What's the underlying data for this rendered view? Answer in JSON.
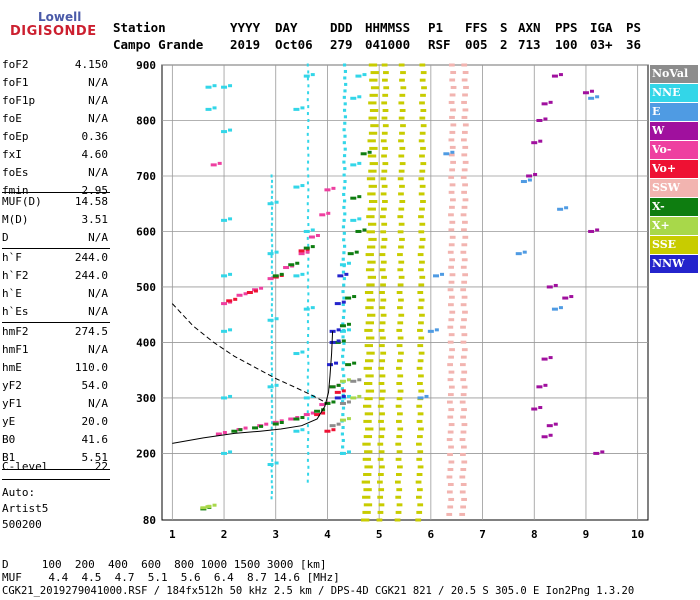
{
  "logo": {
    "line1": "Lowell",
    "line2": "DIGISONDE"
  },
  "header": {
    "row1": [
      {
        "key": "station",
        "text": "Station"
      },
      {
        "key": "yyyy",
        "text": "YYYY"
      },
      {
        "key": "day",
        "text": "DAY"
      },
      {
        "key": "ddd",
        "text": "DDD"
      },
      {
        "key": "hhmmss",
        "text": "HHMMSS"
      },
      {
        "key": "p1",
        "text": "P1"
      },
      {
        "key": "ffs",
        "text": "FFS"
      },
      {
        "key": "s",
        "text": "S"
      },
      {
        "key": "axn",
        "text": "AXN"
      },
      {
        "key": "pps",
        "text": "PPS"
      },
      {
        "key": "iga",
        "text": "IGA"
      },
      {
        "key": "ps",
        "text": "PS"
      }
    ],
    "row2": [
      {
        "key": "station",
        "text": "Campo Grande"
      },
      {
        "key": "yyyy",
        "text": "2019"
      },
      {
        "key": "day",
        "text": "Oct06"
      },
      {
        "key": "ddd",
        "text": "279"
      },
      {
        "key": "hhmmss",
        "text": "041000"
      },
      {
        "key": "p1",
        "text": "RSF"
      },
      {
        "key": "ffs",
        "text": "005"
      },
      {
        "key": "s",
        "text": "2"
      },
      {
        "key": "axn",
        "text": "713"
      },
      {
        "key": "pps",
        "text": "100"
      },
      {
        "key": "iga",
        "text": "03+"
      },
      {
        "key": "ps",
        "text": "36"
      }
    ]
  },
  "params": {
    "group1": [
      {
        "name": "foF2",
        "value": "4.150"
      },
      {
        "name": "foF1",
        "value": "N/A"
      },
      {
        "name": "foF1p",
        "value": "N/A"
      },
      {
        "name": "foE",
        "value": "N/A"
      },
      {
        "name": "foEp",
        "value": "0.36"
      },
      {
        "name": "fxI",
        "value": "4.60"
      },
      {
        "name": "foEs",
        "value": "N/A"
      },
      {
        "name": "fmin",
        "value": "2.95"
      }
    ],
    "group2": [
      {
        "name": "MUF(D)",
        "value": "14.58"
      },
      {
        "name": "M(D)",
        "value": "3.51"
      },
      {
        "name": "D",
        "value": "N/A"
      }
    ],
    "group3": [
      {
        "name": "h`F",
        "value": "244.0"
      },
      {
        "name": "h`F2",
        "value": "244.0"
      },
      {
        "name": "h`E",
        "value": "N/A"
      },
      {
        "name": "h`Es",
        "value": "N/A"
      }
    ],
    "group4": [
      {
        "name": "hmF2",
        "value": "274.5"
      },
      {
        "name": "hmF1",
        "value": "N/A"
      },
      {
        "name": "hmE",
        "value": "110.0"
      },
      {
        "name": "yF2",
        "value": "54.0"
      },
      {
        "name": "yF1",
        "value": "N/A"
      },
      {
        "name": "yE",
        "value": "20.0"
      },
      {
        "name": "B0",
        "value": "41.6"
      },
      {
        "name": "B1",
        "value": "5.51"
      }
    ],
    "clevel": {
      "name": "C-level",
      "value": "22"
    },
    "auto": [
      "Auto:",
      "Artist5",
      "500200"
    ]
  },
  "legend": [
    {
      "label": "NoVal",
      "color": "#8c8c8c"
    },
    {
      "label": "NNE",
      "color": "#33d6e8"
    },
    {
      "label": "E",
      "color": "#4f9be3"
    },
    {
      "label": "W",
      "color": "#a0109e"
    },
    {
      "label": "Vo-",
      "color": "#ee3fa0"
    },
    {
      "label": "Vo+",
      "color": "#ee1133"
    },
    {
      "label": "SSW",
      "color": "#f2b4b0"
    },
    {
      "label": "X-",
      "color": "#0e7d10"
    },
    {
      "label": "X+",
      "color": "#a8d84a"
    },
    {
      "label": "SSE",
      "color": "#c8cc00"
    },
    {
      "label": "NNW",
      "color": "#2424cc"
    }
  ],
  "bottom": {
    "d_row": "D     100  200  400  600  800 1000 1500 3000 [km]",
    "muf_row": "MUF    4.4  4.5  4.7  5.1  5.6  6.4  8.7 14.6 [MHz]",
    "footer": "CGK21_2019279041000.RSF / 184fx512h 50 kHz 2.5 km / DPS-4D CGK21 821 / 20.5 S 305.0 E Ion2Png 1.3.20"
  },
  "chart_data": {
    "type": "scatter",
    "x_ticks": [
      1,
      2,
      3,
      4,
      5,
      6,
      7,
      8,
      9,
      10
    ],
    "y_ticks": [
      200,
      300,
      400,
      500,
      600,
      700,
      800,
      900
    ],
    "y_bottom_label": "80",
    "xlim": [
      0.8,
      10.2
    ],
    "ylim": [
      80,
      900
    ],
    "grid": true,
    "series": [
      {
        "color": "#33d6e8",
        "points": [
          [
            2.0,
            200
          ],
          [
            2.0,
            300
          ],
          [
            2.0,
            420
          ],
          [
            2.0,
            520
          ],
          [
            2.0,
            620
          ],
          [
            2.0,
            780
          ],
          [
            2.0,
            860
          ],
          [
            2.9,
            180
          ],
          [
            2.9,
            320
          ],
          [
            2.9,
            440
          ],
          [
            2.9,
            560
          ],
          [
            2.9,
            650
          ],
          [
            3.4,
            240
          ],
          [
            3.4,
            380
          ],
          [
            3.4,
            520
          ],
          [
            3.4,
            680
          ],
          [
            3.4,
            820
          ],
          [
            3.6,
            300
          ],
          [
            3.6,
            460
          ],
          [
            3.6,
            600
          ],
          [
            3.6,
            880
          ],
          [
            4.3,
            200
          ],
          [
            4.3,
            300
          ],
          [
            4.3,
            420
          ],
          [
            4.3,
            540
          ],
          [
            4.5,
            620
          ],
          [
            4.5,
            720
          ],
          [
            4.5,
            840
          ],
          [
            4.6,
            880
          ],
          [
            1.7,
            820
          ],
          [
            1.7,
            860
          ]
        ]
      },
      {
        "color": "#4f9be3",
        "points": [
          [
            5.8,
            300
          ],
          [
            6.0,
            420
          ],
          [
            6.1,
            520
          ],
          [
            6.3,
            740
          ],
          [
            7.7,
            560
          ],
          [
            7.8,
            690
          ],
          [
            8.4,
            460
          ],
          [
            8.5,
            640
          ],
          [
            9.1,
            840
          ]
        ]
      },
      {
        "color": "#a0109e",
        "points": [
          [
            8.0,
            280
          ],
          [
            8.1,
            320
          ],
          [
            8.2,
            370
          ],
          [
            7.9,
            700
          ],
          [
            8.0,
            760
          ],
          [
            8.1,
            800
          ],
          [
            8.2,
            830
          ],
          [
            8.3,
            500
          ],
          [
            8.3,
            250
          ],
          [
            8.2,
            230
          ],
          [
            9.1,
            600
          ],
          [
            9.0,
            850
          ],
          [
            9.2,
            200
          ],
          [
            8.4,
            880
          ],
          [
            8.6,
            480
          ]
        ]
      },
      {
        "color": "#ee3fa0",
        "points": [
          [
            2.0,
            470
          ],
          [
            2.3,
            485
          ],
          [
            2.6,
            495
          ],
          [
            2.9,
            515
          ],
          [
            3.2,
            535
          ],
          [
            3.5,
            560
          ],
          [
            3.7,
            590
          ],
          [
            3.9,
            630
          ],
          [
            4.0,
            675
          ],
          [
            1.9,
            235
          ],
          [
            2.3,
            243
          ],
          [
            2.7,
            250
          ],
          [
            3.0,
            256
          ],
          [
            3.3,
            262
          ],
          [
            3.6,
            270
          ],
          [
            3.9,
            288
          ],
          [
            4.1,
            320
          ],
          [
            1.8,
            720
          ]
        ]
      },
      {
        "color": "#ee1133",
        "points": [
          [
            2.1,
            475
          ],
          [
            2.5,
            490
          ],
          [
            3.0,
            518
          ],
          [
            3.5,
            565
          ],
          [
            4.2,
            310
          ],
          [
            4.0,
            240
          ],
          [
            3.8,
            270
          ]
        ]
      },
      {
        "color": "#0e7d10",
        "points": [
          [
            2.2,
            240
          ],
          [
            2.6,
            246
          ],
          [
            3.0,
            253
          ],
          [
            3.4,
            262
          ],
          [
            3.8,
            276
          ],
          [
            4.0,
            290
          ],
          [
            4.1,
            320
          ],
          [
            3.0,
            520
          ],
          [
            3.3,
            540
          ],
          [
            3.6,
            570
          ],
          [
            4.2,
            400
          ],
          [
            4.3,
            430
          ],
          [
            4.4,
            480
          ],
          [
            4.45,
            560
          ],
          [
            4.5,
            660
          ],
          [
            4.4,
            360
          ],
          [
            4.7,
            740
          ],
          [
            4.6,
            600
          ],
          [
            1.6,
            100
          ]
        ]
      },
      {
        "color": "#a8d84a",
        "points": [
          [
            1.6,
            102
          ],
          [
            1.7,
            104
          ],
          [
            4.3,
            260
          ],
          [
            4.5,
            300
          ],
          [
            4.3,
            330
          ]
        ]
      },
      {
        "color": "#2424cc",
        "points": [
          [
            4.05,
            360
          ],
          [
            4.1,
            420
          ],
          [
            4.2,
            470
          ],
          [
            4.25,
            520
          ],
          [
            4.1,
            400
          ],
          [
            4.2,
            300
          ]
        ]
      },
      {
        "color": "#8c8c8c",
        "points": [
          [
            4.1,
            250
          ],
          [
            4.3,
            290
          ],
          [
            4.5,
            330
          ]
        ]
      }
    ],
    "bands": [
      {
        "color": "#c8cc00",
        "x_start": 4.65,
        "x_end": 4.85,
        "y_start": 80,
        "y_end": 900,
        "drift": 0.15
      },
      {
        "color": "#c8cc00",
        "x_start": 4.95,
        "x_end": 5.1,
        "y_start": 80,
        "y_end": 900,
        "drift": 0.1
      },
      {
        "color": "#c8cc00",
        "x_start": 5.3,
        "x_end": 5.45,
        "y_start": 80,
        "y_end": 900,
        "drift": 0.08
      },
      {
        "color": "#c8cc00",
        "x_start": 5.7,
        "x_end": 5.85,
        "y_start": 80,
        "y_end": 900,
        "drift": 0.08
      },
      {
        "color": "#f2b4b0",
        "x_start": 6.3,
        "x_end": 6.45,
        "y_start": 90,
        "y_end": 900,
        "drift": 0.05
      },
      {
        "color": "#f2b4b0",
        "x_start": 6.55,
        "x_end": 6.7,
        "y_start": 90,
        "y_end": 900,
        "drift": 0.04
      },
      {
        "color": "#33d6e8",
        "x_start": 4.25,
        "x_end": 4.35,
        "y_start": 200,
        "y_end": 900,
        "drift": 0.05
      },
      {
        "color": "#33d6e8",
        "x_start": 3.6,
        "x_end": 3.65,
        "y_start": 150,
        "y_end": 900,
        "drift": 0
      },
      {
        "color": "#33d6e8",
        "x_start": 2.9,
        "x_end": 2.95,
        "y_start": 120,
        "y_end": 700,
        "drift": 0
      }
    ],
    "profile_curve": [
      [
        4.1,
        420
      ],
      [
        4.08,
        380
      ],
      [
        4.05,
        340
      ],
      [
        4.02,
        310
      ],
      [
        3.95,
        285
      ],
      [
        3.8,
        262
      ],
      [
        3.5,
        250
      ],
      [
        3.1,
        244
      ],
      [
        2.7,
        240
      ],
      [
        2.2,
        236
      ],
      [
        1.6,
        228
      ],
      [
        1.0,
        218
      ]
    ],
    "dashed_curve": [
      [
        1.0,
        470
      ],
      [
        1.4,
        430
      ],
      [
        1.8,
        400
      ],
      [
        2.2,
        375
      ],
      [
        2.6,
        355
      ],
      [
        3.0,
        335
      ],
      [
        3.4,
        318
      ],
      [
        3.7,
        305
      ],
      [
        3.9,
        295
      ],
      [
        4.0,
        290
      ]
    ]
  }
}
